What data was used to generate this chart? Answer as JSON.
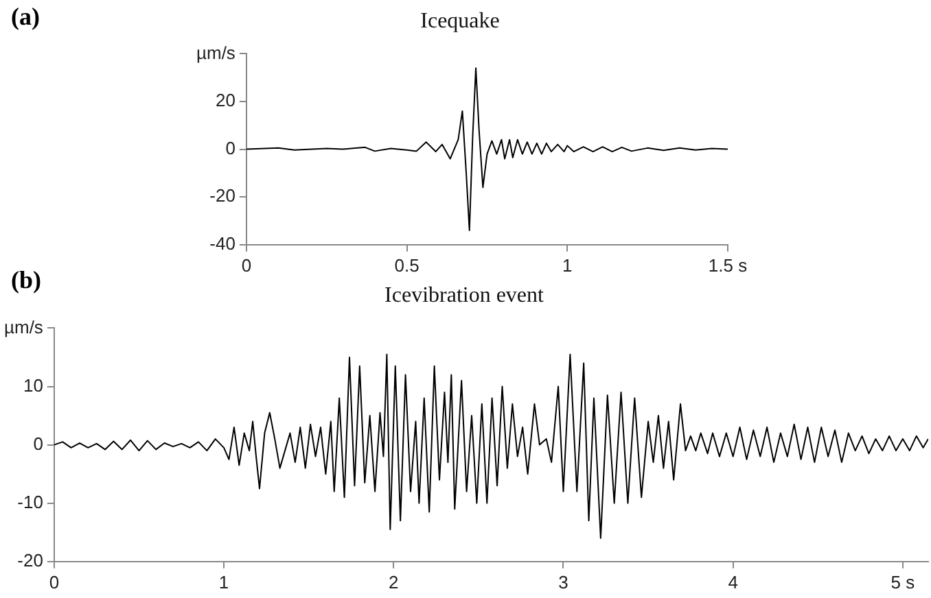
{
  "chart_data": [
    {
      "type": "line",
      "title": "Icequake",
      "annotations": [
        "(a)"
      ],
      "color": "#000000",
      "marker": "none",
      "line_style": "solid",
      "grid": false,
      "x": [
        0,
        0.1,
        0.15,
        0.25,
        0.3,
        0.37,
        0.4,
        0.45,
        0.5,
        0.53,
        0.56,
        0.59,
        0.61,
        0.635,
        0.66,
        0.673,
        0.685,
        0.695,
        0.705,
        0.715,
        0.725,
        0.737,
        0.75,
        0.765,
        0.78,
        0.795,
        0.805,
        0.82,
        0.83,
        0.845,
        0.86,
        0.875,
        0.89,
        0.905,
        0.92,
        0.935,
        0.95,
        0.97,
        0.99,
        1.0,
        1.02,
        1.05,
        1.08,
        1.11,
        1.14,
        1.17,
        1.2,
        1.25,
        1.3,
        1.35,
        1.4,
        1.45,
        1.5
      ],
      "values": [
        0,
        0.5,
        -0.3,
        0.3,
        0,
        0.8,
        -0.8,
        0.3,
        -0.3,
        -0.8,
        3,
        -1,
        2,
        -4,
        4,
        16,
        -10,
        -34,
        5,
        34,
        8,
        -16,
        -2,
        3.5,
        -2,
        4,
        -4,
        4,
        -3.5,
        4,
        -2,
        3,
        -2,
        2.5,
        -2,
        2.5,
        -1,
        2,
        -1,
        1.5,
        -1,
        1,
        -1,
        1,
        -1,
        0.8,
        -0.8,
        0.5,
        -0.5,
        0.5,
        -0.3,
        0.3,
        0
      ],
      "xlim": [
        0,
        1.5
      ],
      "xticks": [
        0,
        0.5,
        1,
        {
          "value": 1.5,
          "label": "1.5 s"
        }
      ],
      "ylim": [
        -40,
        40
      ],
      "yticks": [
        -40,
        -20,
        0,
        20,
        {
          "value": 40,
          "label": "µm/s"
        }
      ]
    },
    {
      "type": "line",
      "title": "Icevibration event",
      "annotations": [
        "(b)"
      ],
      "color": "#000000",
      "marker": "none",
      "line_style": "solid",
      "grid": false,
      "x": [
        0,
        0.05,
        0.1,
        0.15,
        0.2,
        0.25,
        0.3,
        0.35,
        0.4,
        0.45,
        0.5,
        0.55,
        0.6,
        0.65,
        0.7,
        0.75,
        0.8,
        0.85,
        0.9,
        0.95,
        1.0,
        1.03,
        1.06,
        1.09,
        1.12,
        1.15,
        1.17,
        1.19,
        1.21,
        1.24,
        1.27,
        1.3,
        1.33,
        1.36,
        1.39,
        1.42,
        1.45,
        1.48,
        1.51,
        1.54,
        1.57,
        1.6,
        1.63,
        1.65,
        1.68,
        1.71,
        1.74,
        1.77,
        1.8,
        1.83,
        1.86,
        1.89,
        1.92,
        1.94,
        1.96,
        1.98,
        2.01,
        2.04,
        2.07,
        2.1,
        2.13,
        2.15,
        2.18,
        2.21,
        2.24,
        2.27,
        2.3,
        2.32,
        2.34,
        2.36,
        2.4,
        2.43,
        2.46,
        2.49,
        2.52,
        2.55,
        2.58,
        2.61,
        2.64,
        2.67,
        2.7,
        2.73,
        2.76,
        2.79,
        2.83,
        2.86,
        2.9,
        2.93,
        2.97,
        3.0,
        3.04,
        3.08,
        3.12,
        3.15,
        3.18,
        3.22,
        3.26,
        3.3,
        3.34,
        3.38,
        3.42,
        3.46,
        3.5,
        3.53,
        3.56,
        3.59,
        3.62,
        3.65,
        3.69,
        3.72,
        3.75,
        3.78,
        3.81,
        3.85,
        3.88,
        3.92,
        3.96,
        4.0,
        4.04,
        4.08,
        4.12,
        4.16,
        4.2,
        4.24,
        4.28,
        4.32,
        4.36,
        4.4,
        4.44,
        4.48,
        4.52,
        4.56,
        4.6,
        4.64,
        4.68,
        4.72,
        4.76,
        4.8,
        4.84,
        4.88,
        4.92,
        4.96,
        5.0,
        5.04,
        5.08,
        5.12,
        5.15
      ],
      "values": [
        0,
        0.5,
        -0.5,
        0.3,
        -0.5,
        0.2,
        -0.8,
        0.6,
        -0.8,
        0.8,
        -1,
        0.7,
        -0.8,
        0.3,
        -0.3,
        0.2,
        -0.5,
        0.5,
        -1,
        1,
        -0.5,
        -2.5,
        3,
        -3.5,
        2,
        -1,
        4,
        -2,
        -7.5,
        2,
        5.5,
        1,
        -4,
        -1,
        2,
        -3,
        3,
        -4,
        3.5,
        -2,
        3,
        -5,
        4,
        -8,
        8,
        -9,
        15,
        -7,
        13.5,
        -6.5,
        5,
        -8,
        5.5,
        -2,
        15.5,
        -14.5,
        13.5,
        -13,
        12,
        -8,
        4,
        -10,
        8,
        -11.5,
        13.5,
        -6,
        9,
        -3,
        12,
        -11,
        11,
        -8,
        5,
        -10,
        7,
        -10,
        8,
        -7,
        10,
        -4,
        7,
        -2,
        3,
        -5,
        7,
        0,
        1,
        -3,
        10,
        -8,
        15.5,
        -8,
        14,
        -13,
        8,
        -16,
        8.5,
        -10,
        9,
        -10,
        8,
        -9,
        4,
        -3,
        5,
        -4,
        4,
        -6,
        7,
        -1,
        1.5,
        -1,
        2,
        -1.5,
        2,
        -2,
        2,
        -2,
        3,
        -2.5,
        2.5,
        -2,
        3,
        -3,
        2,
        -2,
        3.5,
        -2.5,
        3,
        -3,
        3,
        -2,
        2.5,
        -3,
        2,
        -1,
        1.5,
        -1.5,
        1,
        -1,
        1.5,
        -1,
        1,
        -1,
        1.5,
        -0.5,
        1
      ],
      "xlim": [
        0,
        5.15
      ],
      "xticks": [
        0,
        1,
        2,
        3,
        4,
        {
          "value": 5,
          "label": "5 s"
        }
      ],
      "ylim": [
        -20,
        20
      ],
      "yticks": [
        -20,
        -10,
        0,
        10,
        {
          "value": 20,
          "label": "µm/s"
        }
      ]
    }
  ]
}
